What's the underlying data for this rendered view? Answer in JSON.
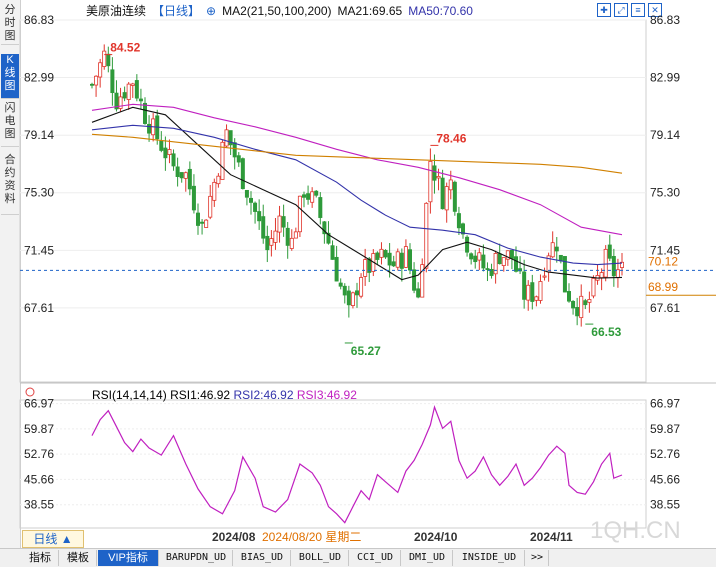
{
  "sidebar": {
    "tabs": [
      {
        "label": "分时图",
        "active": false
      },
      {
        "label": "K线图",
        "active": true
      },
      {
        "label": "闪电图",
        "active": false
      },
      {
        "label": "合约资料",
        "active": false
      }
    ]
  },
  "header": {
    "title": "美原油连续",
    "period": "【日线】",
    "ma_label": "MA2(21,50,100,200)",
    "ma21_label": "MA21:69.65",
    "ma50_label": "MA50:70.60"
  },
  "rsi_header": {
    "label": "RSI(14,14,14)",
    "rsi1": "RSI1:46.92",
    "rsi2": "RSI2:46.92",
    "rsi3": "RSI3:46.92"
  },
  "period_button": "日线 ▲",
  "bottom_tabs": [
    "指标",
    "模板",
    "VIP指标",
    "BARUPDN_UD",
    "BIAS_UD",
    "BOLL_UD",
    "CCI_UD",
    "DMI_UD",
    "INSIDE_UD",
    ">>"
  ],
  "watermark": "1QH.CN",
  "colors": {
    "up": "#e0352b",
    "down": "#2e9a3a",
    "ma21": "#111111",
    "ma50": "#3333aa",
    "ma100": "#c020c0",
    "ma200": "#d08000",
    "rsi": "#c020c0",
    "accent": "#1e63c8"
  },
  "chart_data": [
    {
      "type": "candlestick",
      "name": "price",
      "y_ticks": [
        86.83,
        82.99,
        79.14,
        75.3,
        71.45,
        67.61
      ],
      "ylim": [
        64.0,
        86.83
      ],
      "x_labels": [
        "2024/08",
        "2024/08/20 星期二",
        "2024/10",
        "2024/11"
      ],
      "annotations": [
        {
          "label": "84.52",
          "value": 84.52,
          "x_index": 3
        },
        {
          "label": "78.46",
          "value": 78.46,
          "x_index": 83
        },
        {
          "label": "65.27",
          "value": 65.27,
          "x_index": 62
        },
        {
          "label": "66.53",
          "value": 66.53,
          "x_index": 121
        }
      ],
      "current_price": {
        "label": "70.12",
        "value": 70.12
      },
      "reference_price": {
        "label": "68.99",
        "value": 68.99
      },
      "anchors": [
        [
          0,
          82.5
        ],
        [
          3,
          84.5
        ],
        [
          6,
          81.5
        ],
        [
          10,
          82.8
        ],
        [
          13,
          80.5
        ],
        [
          16,
          79.0
        ],
        [
          20,
          77.0
        ],
        [
          23,
          76.5
        ],
        [
          27,
          73.0
        ],
        [
          30,
          76.0
        ],
        [
          33,
          79.3
        ],
        [
          36,
          77.0
        ],
        [
          40,
          74.0
        ],
        [
          43,
          71.5
        ],
        [
          46,
          73.5
        ],
        [
          49,
          72.0
        ],
        [
          52,
          75.5
        ],
        [
          55,
          74.5
        ],
        [
          58,
          72.0
        ],
        [
          61,
          69.0
        ],
        [
          63,
          67.2
        ],
        [
          66,
          70.0
        ],
        [
          69,
          70.5
        ],
        [
          71,
          71.0
        ],
        [
          74,
          70.5
        ],
        [
          77,
          71.2
        ],
        [
          80,
          68.2
        ],
        [
          83,
          77.5
        ],
        [
          86,
          75.0
        ],
        [
          88,
          76.0
        ],
        [
          91,
          72.5
        ],
        [
          94,
          71.0
        ],
        [
          97,
          70.0
        ],
        [
          100,
          71.2
        ],
        [
          103,
          71.0
        ],
        [
          106,
          68.5
        ],
        [
          109,
          68.6
        ],
        [
          112,
          71.5
        ],
        [
          114,
          72.0
        ],
        [
          116,
          69.0
        ],
        [
          118,
          68.0
        ],
        [
          121,
          67.5
        ],
        [
          124,
          69.5
        ],
        [
          126,
          70.8
        ],
        [
          128,
          70.0
        ],
        [
          130,
          70.12
        ]
      ],
      "series": [
        {
          "name": "MA21",
          "points": [
            [
              0,
              80.0
            ],
            [
              10,
              81.0
            ],
            [
              18,
              80.5
            ],
            [
              26,
              78.5
            ],
            [
              34,
              76.5
            ],
            [
              42,
              75.5
            ],
            [
              50,
              74.5
            ],
            [
              58,
              72.5
            ],
            [
              64,
              71.5
            ],
            [
              70,
              70.5
            ],
            [
              76,
              69.5
            ],
            [
              80,
              69.8
            ],
            [
              86,
              71.5
            ],
            [
              92,
              72.0
            ],
            [
              98,
              71.5
            ],
            [
              106,
              70.5
            ],
            [
              112,
              70.0
            ],
            [
              118,
              69.8
            ],
            [
              124,
              69.6
            ],
            [
              130,
              69.65
            ]
          ]
        },
        {
          "name": "MA50",
          "points": [
            [
              0,
              79.5
            ],
            [
              10,
              79.8
            ],
            [
              20,
              79.6
            ],
            [
              30,
              79.0
            ],
            [
              40,
              78.2
            ],
            [
              50,
              77.5
            ],
            [
              60,
              76.0
            ],
            [
              66,
              74.8
            ],
            [
              72,
              73.8
            ],
            [
              78,
              73.0
            ],
            [
              86,
              72.8
            ],
            [
              94,
              72.5
            ],
            [
              102,
              71.6
            ],
            [
              110,
              71.0
            ],
            [
              118,
              70.6
            ],
            [
              124,
              70.5
            ],
            [
              130,
              70.6
            ]
          ]
        },
        {
          "name": "MA100",
          "points": [
            [
              0,
              80.8
            ],
            [
              10,
              81.2
            ],
            [
              20,
              81.0
            ],
            [
              30,
              80.3
            ],
            [
              40,
              79.7
            ],
            [
              50,
              79.0
            ],
            [
              60,
              78.2
            ],
            [
              70,
              77.5
            ],
            [
              80,
              77.0
            ],
            [
              90,
              76.3
            ],
            [
              100,
              75.5
            ],
            [
              110,
              74.5
            ],
            [
              120,
              73.0
            ],
            [
              130,
              72.5
            ]
          ]
        },
        {
          "name": "MA200",
          "points": [
            [
              0,
              79.2
            ],
            [
              10,
              79.0
            ],
            [
              20,
              78.7
            ],
            [
              30,
              78.4
            ],
            [
              40,
              78.1
            ],
            [
              50,
              77.8
            ],
            [
              60,
              77.7
            ],
            [
              70,
              77.6
            ],
            [
              80,
              77.5
            ],
            [
              90,
              77.4
            ],
            [
              100,
              77.3
            ],
            [
              110,
              77.2
            ],
            [
              120,
              77.0
            ],
            [
              130,
              76.6
            ]
          ]
        }
      ]
    },
    {
      "type": "line",
      "name": "RSI",
      "y_ticks": [
        66.97,
        59.87,
        52.76,
        45.66,
        38.55
      ],
      "ylim": [
        32.0,
        68.0
      ],
      "values": [
        [
          0,
          58.0
        ],
        [
          2,
          62.5
        ],
        [
          4,
          65.0
        ],
        [
          6,
          60.5
        ],
        [
          8,
          56.0
        ],
        [
          10,
          53.5
        ],
        [
          12,
          57.0
        ],
        [
          14,
          54.5
        ],
        [
          17,
          52.5
        ],
        [
          20,
          58.0
        ],
        [
          23,
          50.0
        ],
        [
          26,
          43.0
        ],
        [
          29,
          38.0
        ],
        [
          32,
          36.0
        ],
        [
          35,
          42.5
        ],
        [
          37,
          52.0
        ],
        [
          40,
          46.0
        ],
        [
          42,
          38.0
        ],
        [
          45,
          36.5
        ],
        [
          48,
          40.0
        ],
        [
          51,
          50.0
        ],
        [
          54,
          47.5
        ],
        [
          56,
          44.0
        ],
        [
          58,
          38.0
        ],
        [
          60,
          36.0
        ],
        [
          62,
          33.5
        ],
        [
          64,
          38.0
        ],
        [
          66,
          42.5
        ],
        [
          68,
          40.0
        ],
        [
          70,
          47.0
        ],
        [
          72,
          45.0
        ],
        [
          75,
          42.0
        ],
        [
          77,
          48.0
        ],
        [
          79,
          51.0
        ],
        [
          81,
          55.5
        ],
        [
          83,
          61.0
        ],
        [
          84,
          66.0
        ],
        [
          86,
          60.0
        ],
        [
          88,
          62.0
        ],
        [
          90,
          51.0
        ],
        [
          92,
          46.0
        ],
        [
          94,
          48.0
        ],
        [
          96,
          52.0
        ],
        [
          98,
          47.0
        ],
        [
          100,
          44.0
        ],
        [
          102,
          46.5
        ],
        [
          104,
          50.0
        ],
        [
          106,
          44.0
        ],
        [
          108,
          46.0
        ],
        [
          110,
          49.0
        ],
        [
          112,
          52.5
        ],
        [
          114,
          55.0
        ],
        [
          116,
          53.0
        ],
        [
          117,
          44.0
        ],
        [
          119,
          42.0
        ],
        [
          121,
          41.5
        ],
        [
          123,
          45.0
        ],
        [
          125,
          50.0
        ],
        [
          127,
          53.0
        ],
        [
          128,
          46.0
        ],
        [
          130,
          46.92
        ]
      ]
    }
  ]
}
